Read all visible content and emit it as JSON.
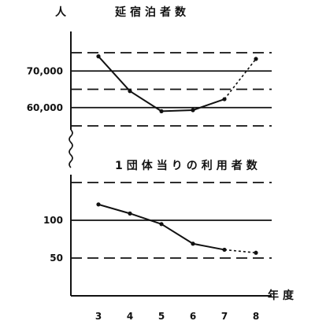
{
  "chart_data": [
    {
      "type": "line",
      "title": "延宿泊者数",
      "ylabel": "人",
      "xlabel": "年度",
      "categories": [
        "3",
        "4",
        "5",
        "6",
        "7",
        "8"
      ],
      "series": [
        {
          "values": [
            74000,
            64500,
            59000,
            59300,
            62300,
            73300
          ],
          "dashed_from_index": 4
        }
      ],
      "y_ticks": [
        {
          "value": 70000,
          "label": "70,000"
        },
        {
          "value": 60000,
          "label": "60,000"
        }
      ],
      "gridlines": [
        {
          "value": 75000,
          "style": "dashed"
        },
        {
          "value": 70000,
          "style": "solid"
        },
        {
          "value": 65000,
          "style": "dashed"
        },
        {
          "value": 60000,
          "style": "solid"
        },
        {
          "value": 55000,
          "style": "dashed"
        }
      ],
      "ylim": [
        55000,
        75000
      ]
    },
    {
      "type": "line",
      "title": "1団体当りの利用者数",
      "categories": [
        "3",
        "4",
        "5",
        "6",
        "7",
        "8"
      ],
      "series": [
        {
          "values": [
            121,
            109,
            95,
            69,
            61,
            57
          ],
          "dashed_from_index": 4
        }
      ],
      "y_ticks": [
        {
          "value": 100,
          "label": "100"
        },
        {
          "value": 50,
          "label": "50"
        }
      ],
      "gridlines": [
        {
          "value": 150,
          "style": "dashed"
        },
        {
          "value": 100,
          "style": "solid"
        },
        {
          "value": 50,
          "style": "dashed"
        }
      ],
      "ylim": [
        0,
        150
      ]
    }
  ],
  "axis_break": "≀"
}
